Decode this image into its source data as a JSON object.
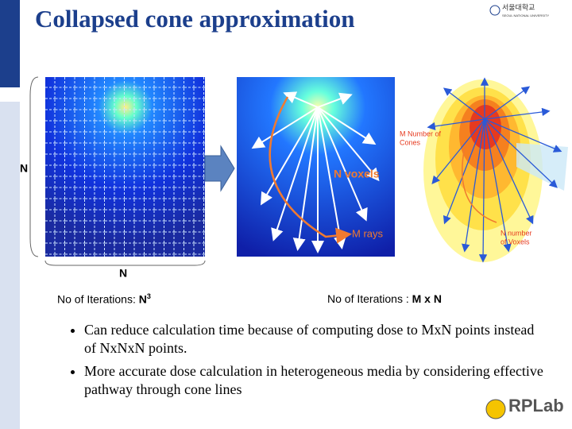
{
  "header": {
    "title": "Collapsed cone approximation",
    "logo": {
      "korean": "서울대학교",
      "english": "SEOUL NATIONAL UNIVERSITY"
    }
  },
  "figure": {
    "left": {
      "side_label": "N",
      "bottom_label": "N"
    },
    "middle": {
      "voxels_label": "N voxels",
      "rays_label": "M rays"
    },
    "right": {
      "cones_label": [
        "M  Number  of",
        "Cones"
      ],
      "voxels_label": [
        "N  number",
        "of Voxels"
      ]
    }
  },
  "iterations": [
    {
      "text": "No of Iterations: ",
      "value": "N",
      "superscript": "3"
    },
    {
      "text": "No of Iterations : ",
      "value": "M x N"
    }
  ],
  "bullets": [
    "Can reduce calculation time because of computing dose to MxN points instead of NxNxN points.",
    "More accurate dose calculation in heterogeneous media by considering effective pathway through cone lines"
  ],
  "footer_logo": "RPLab"
}
